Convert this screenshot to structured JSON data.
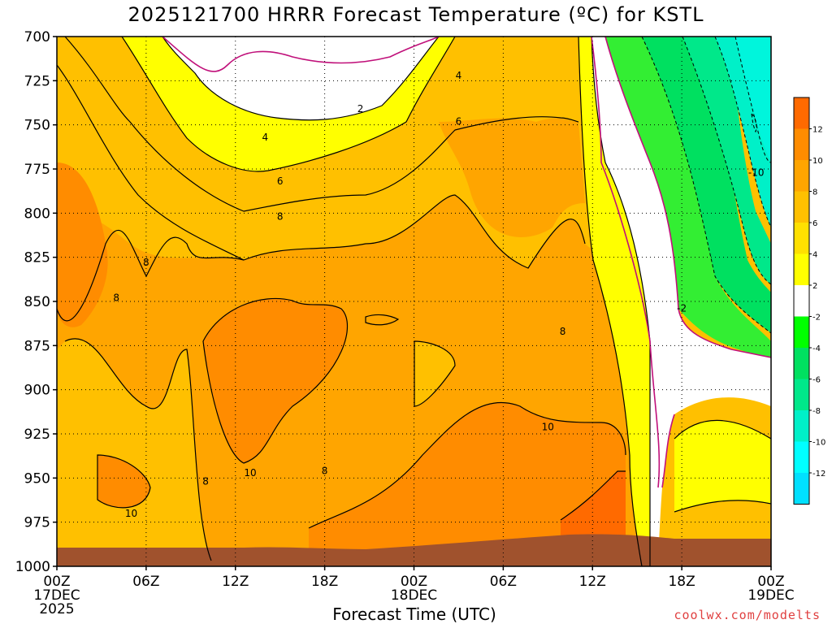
{
  "title": "2025121700 HRRR Forecast Temperature (ºC) for KSTL",
  "credit": "coolwx.com/modelts",
  "chart_data": {
    "type": "heatmap",
    "title": "2025121700 HRRR Forecast Temperature (ºC) for KSTL",
    "xlabel": "Forecast Time (UTC)",
    "ylabel": "",
    "y_ticks": [
      "700",
      "725",
      "750",
      "775",
      "800",
      "825",
      "850",
      "875",
      "900",
      "925",
      "950",
      "975",
      "1000"
    ],
    "x_ticks": [
      {
        "label": "00Z",
        "sub": "17DEC",
        "sub2": "2025"
      },
      {
        "label": "06Z",
        "sub": "",
        "sub2": ""
      },
      {
        "label": "12Z",
        "sub": "",
        "sub2": ""
      },
      {
        "label": "18Z",
        "sub": "",
        "sub2": ""
      },
      {
        "label": "00Z",
        "sub": "18DEC",
        "sub2": ""
      },
      {
        "label": "06Z",
        "sub": "",
        "sub2": ""
      },
      {
        "label": "12Z",
        "sub": "",
        "sub2": ""
      },
      {
        "label": "18Z",
        "sub": "",
        "sub2": ""
      },
      {
        "label": "00Z",
        "sub": "19DEC",
        "sub2": ""
      }
    ],
    "ylim": [
      700,
      1000
    ],
    "xlim_hours": [
      0,
      48
    ],
    "grid": true,
    "colorbar": {
      "labels": [
        "12",
        "10",
        "8",
        "6",
        "4",
        "2",
        "-2",
        "-4",
        "-6",
        "-8",
        "-10",
        "-12"
      ],
      "colors": [
        "#ff6a00",
        "#ff8c00",
        "#ffa500",
        "#ffc000",
        "#ffe000",
        "#ffff00",
        "#ffffff",
        "#00ff00",
        "#00e060",
        "#00e88a",
        "#00f0c8",
        "#00ffff",
        "#00e0ff"
      ]
    },
    "contour_labels": [
      {
        "text": "2",
        "x": 20.4,
        "y": 741
      },
      {
        "text": "4",
        "x": 27.0,
        "y": 722
      },
      {
        "text": "4",
        "x": 14.0,
        "y": 757
      },
      {
        "text": "6",
        "x": 27.0,
        "y": 748
      },
      {
        "text": "6",
        "x": 15.0,
        "y": 782
      },
      {
        "text": "8",
        "x": 15.0,
        "y": 802
      },
      {
        "text": "8",
        "x": 6.0,
        "y": 828
      },
      {
        "text": "8",
        "x": 4.0,
        "y": 848
      },
      {
        "text": "8",
        "x": 34.0,
        "y": 867
      },
      {
        "text": "8",
        "x": 10.0,
        "y": 952
      },
      {
        "text": "8",
        "x": 18.0,
        "y": 946
      },
      {
        "text": "10",
        "x": 13.0,
        "y": 947
      },
      {
        "text": "10",
        "x": 5.0,
        "y": 970
      },
      {
        "text": "10",
        "x": 33.0,
        "y": 921
      },
      {
        "text": "-2",
        "x": 42.0,
        "y": 854
      },
      {
        "text": "-10",
        "x": 47.0,
        "y": 777
      }
    ]
  }
}
